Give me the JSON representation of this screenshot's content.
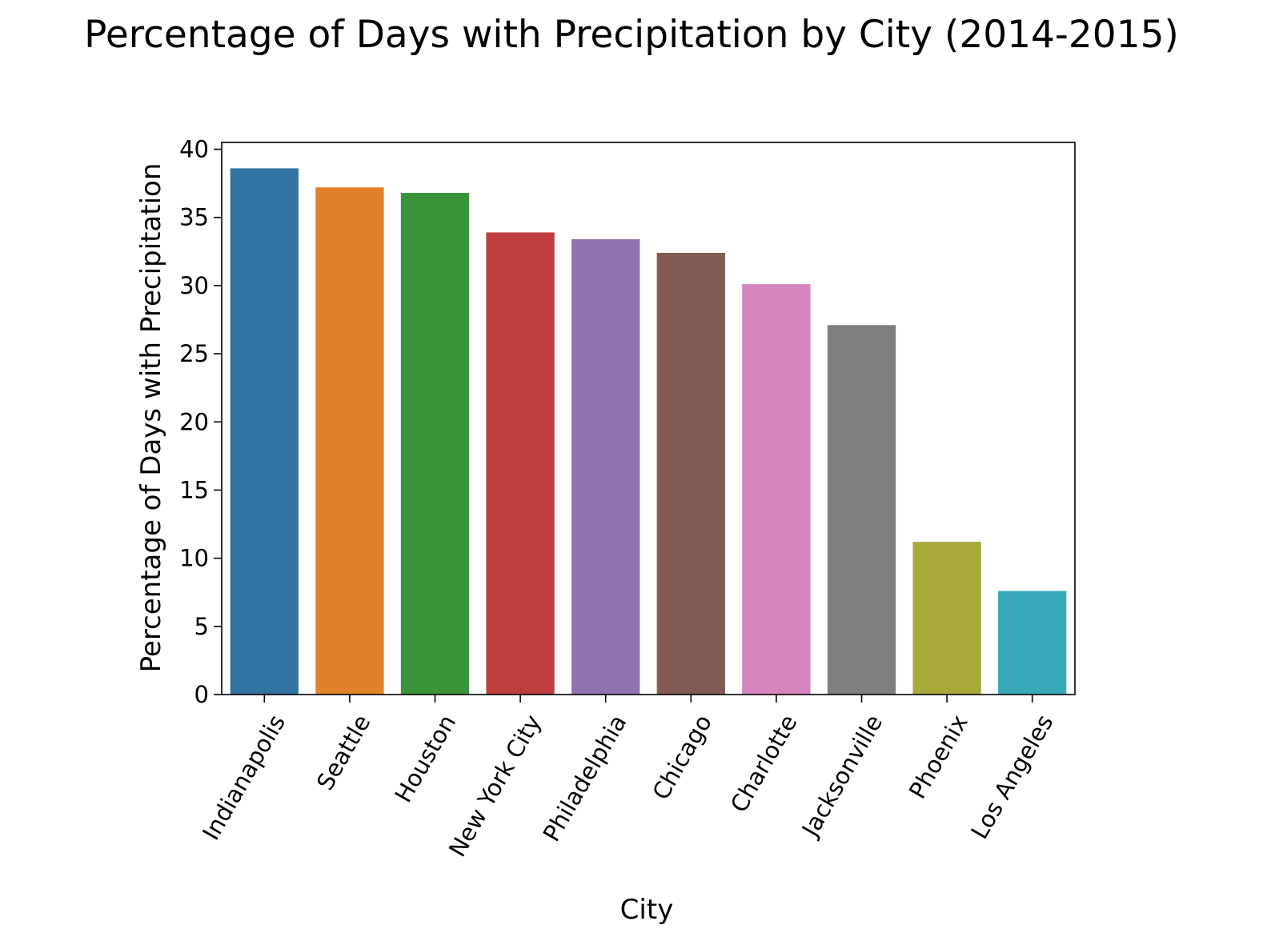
{
  "chart_data": {
    "type": "bar",
    "title": "Percentage of Days with Precipitation by City (2014-2015)",
    "xlabel": "City",
    "ylabel": "Percentage of Days with Precipitation",
    "categories": [
      "Indianapolis",
      "Seattle",
      "Houston",
      "New York City",
      "Philadelphia",
      "Chicago",
      "Charlotte",
      "Jacksonville",
      "Phoenix",
      "Los Angeles"
    ],
    "values": [
      38.6,
      37.2,
      36.8,
      33.9,
      33.4,
      32.4,
      30.1,
      27.1,
      11.2,
      7.6
    ],
    "colors": [
      "#3274a1",
      "#e1812c",
      "#3a923a",
      "#c03d3e",
      "#9372b2",
      "#845b53",
      "#d684bd",
      "#7f7f7f",
      "#a9a93a",
      "#38a9b9"
    ],
    "ylim": [
      0,
      40.5
    ],
    "yticks": [
      0,
      5,
      10,
      15,
      20,
      25,
      30,
      35,
      40
    ],
    "grid": false,
    "legend": "none"
  }
}
